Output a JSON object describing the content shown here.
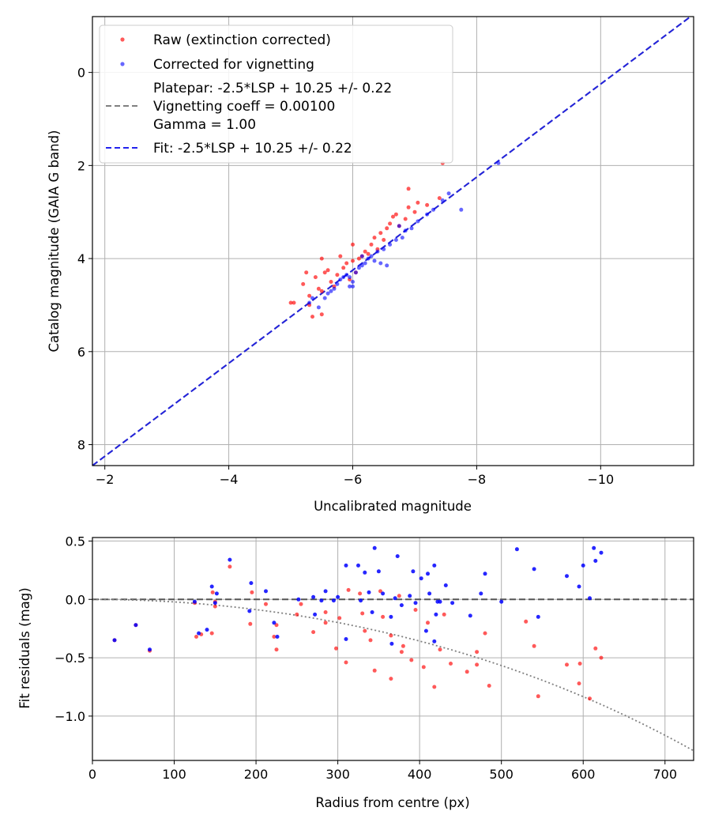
{
  "chart_data": [
    {
      "type": "scatter",
      "panel": "calibration",
      "title": "",
      "xlabel": "Uncalibrated magnitude",
      "ylabel": "Catalog magnitude (GAIA G band)",
      "xlim": [
        -1.8,
        -11.5
      ],
      "ylim": [
        8.45,
        -1.2
      ],
      "x_inverted": true,
      "y_inverted": true,
      "grid": true,
      "legend_location": "upper-left",
      "xticks": [
        -2,
        -4,
        -6,
        -8,
        -10
      ],
      "xtick_labels": [
        "−2",
        "−4",
        "−6",
        "−8",
        "−10"
      ],
      "yticks": [
        0,
        2,
        4,
        6,
        8
      ],
      "ytick_labels": [
        "0",
        "2",
        "4",
        "6",
        "8"
      ],
      "legend": [
        {
          "label": "Raw (extinction corrected)",
          "kind": "marker",
          "color": "#ff0000"
        },
        {
          "label": "Corrected for vignetting",
          "kind": "marker",
          "color": "#0000ff"
        },
        {
          "label": "Platepar: -2.5*LSP + 10.25 +/- 0.22",
          "label2": "Vignetting coeff = 0.00100",
          "label3": "Gamma = 1.00",
          "kind": "dashed-line",
          "color": "#808080"
        },
        {
          "label": "Fit: -2.5*LSP + 10.25 +/- 0.22",
          "kind": "dashed-line",
          "color": "#2222ee"
        }
      ],
      "lines": [
        {
          "name": "Platepar",
          "slope": 1.0,
          "intercept": 10.25,
          "color": "#808080"
        },
        {
          "name": "Fit",
          "slope": 1.0,
          "intercept": 10.25,
          "color": "#2222dd"
        }
      ],
      "series": [
        {
          "name": "Raw (extinction corrected)",
          "color": "#ff0000",
          "points": [
            [
              -5.0,
              4.95
            ],
            [
              -5.05,
              4.95
            ],
            [
              -5.2,
              4.55
            ],
            [
              -5.3,
              4.8
            ],
            [
              -5.3,
              5.0
            ],
            [
              -5.35,
              5.25
            ],
            [
              -5.4,
              4.4
            ],
            [
              -5.45,
              4.65
            ],
            [
              -5.5,
              5.2
            ],
            [
              -5.5,
              4.7
            ],
            [
              -5.55,
              4.3
            ],
            [
              -5.6,
              4.25
            ],
            [
              -5.65,
              4.5
            ],
            [
              -5.7,
              4.6
            ],
            [
              -5.75,
              4.35
            ],
            [
              -5.85,
              4.2
            ],
            [
              -5.9,
              4.1
            ],
            [
              -5.95,
              4.45
            ],
            [
              -6.0,
              4.05
            ],
            [
              -6.05,
              4.3
            ],
            [
              -6.1,
              4.0
            ],
            [
              -6.15,
              3.95
            ],
            [
              -6.2,
              3.85
            ],
            [
              -6.25,
              3.9
            ],
            [
              -6.3,
              3.7
            ],
            [
              -6.35,
              3.55
            ],
            [
              -6.4,
              3.8
            ],
            [
              -6.45,
              3.45
            ],
            [
              -6.55,
              3.35
            ],
            [
              -6.6,
              3.25
            ],
            [
              -6.65,
              3.1
            ],
            [
              -6.75,
              3.3
            ],
            [
              -6.85,
              3.15
            ],
            [
              -6.9,
              2.9
            ],
            [
              -7.0,
              3.0
            ],
            [
              -7.05,
              2.8
            ],
            [
              -6.9,
              2.5
            ],
            [
              -7.2,
              2.85
            ],
            [
              -7.4,
              2.7
            ],
            [
              -7.45,
              1.95
            ],
            [
              -5.5,
              4.0
            ],
            [
              -6.5,
              3.6
            ],
            [
              -5.8,
              3.95
            ],
            [
              -6.0,
              3.7
            ],
            [
              -5.25,
              4.3
            ],
            [
              -6.7,
              3.05
            ]
          ]
        },
        {
          "name": "Corrected for vignetting",
          "color": "#0000ff",
          "points": [
            [
              -5.3,
              4.95
            ],
            [
              -5.45,
              5.05
            ],
            [
              -5.55,
              4.85
            ],
            [
              -5.6,
              4.75
            ],
            [
              -5.7,
              4.65
            ],
            [
              -5.75,
              4.55
            ],
            [
              -5.8,
              4.45
            ],
            [
              -5.85,
              4.4
            ],
            [
              -5.9,
              4.35
            ],
            [
              -5.95,
              4.4
            ],
            [
              -6.0,
              4.5
            ],
            [
              -6.05,
              4.3
            ],
            [
              -6.1,
              4.2
            ],
            [
              -6.15,
              4.15
            ],
            [
              -6.2,
              4.1
            ],
            [
              -6.25,
              4.0
            ],
            [
              -6.3,
              3.95
            ],
            [
              -6.35,
              4.05
            ],
            [
              -6.4,
              3.85
            ],
            [
              -6.45,
              4.1
            ],
            [
              -6.5,
              3.8
            ],
            [
              -6.6,
              3.7
            ],
            [
              -6.7,
              3.6
            ],
            [
              -6.8,
              3.55
            ],
            [
              -6.85,
              3.4
            ],
            [
              -6.95,
              3.35
            ],
            [
              -7.05,
              3.2
            ],
            [
              -7.2,
              3.05
            ],
            [
              -7.3,
              2.95
            ],
            [
              -7.45,
              2.75
            ],
            [
              -7.55,
              2.6
            ],
            [
              -7.75,
              2.95
            ],
            [
              -8.35,
              1.95
            ],
            [
              -6.0,
              4.6
            ],
            [
              -5.65,
              4.7
            ],
            [
              -6.55,
              4.15
            ],
            [
              -6.15,
              3.95
            ],
            [
              -5.35,
              4.85
            ],
            [
              -5.95,
              4.6
            ],
            [
              -6.75,
              3.3
            ]
          ]
        }
      ]
    },
    {
      "type": "scatter",
      "panel": "residuals",
      "title": "",
      "xlabel": "Radius from centre (px)",
      "ylabel": "Fit residuals (mag)",
      "xlim": [
        0,
        735
      ],
      "ylim": [
        -1.38,
        0.53
      ],
      "grid": true,
      "xticks": [
        0,
        100,
        200,
        300,
        400,
        500,
        600,
        700
      ],
      "xtick_labels": [
        "0",
        "100",
        "200",
        "300",
        "400",
        "500",
        "600",
        "700"
      ],
      "yticks": [
        0.5,
        0.0,
        -0.5,
        -1.0
      ],
      "ytick_labels": [
        "0.5",
        "0.0",
        "−0.5",
        "−1.0"
      ],
      "reference_line": {
        "y": 0.0,
        "color": "#555555"
      },
      "vignetting_curve": {
        "coeff": 0.001,
        "gamma": 1.0,
        "color": "#808080"
      },
      "series": [
        {
          "name": "Raw (extinction corrected)",
          "color": "#ff0000",
          "points": [
            [
              27,
              -0.35
            ],
            [
              53,
              -0.22
            ],
            [
              70,
              -0.44
            ],
            [
              127,
              -0.32
            ],
            [
              133,
              -0.3
            ],
            [
              146,
              -0.29
            ],
            [
              147,
              0.06
            ],
            [
              150,
              -0.06
            ],
            [
              168,
              0.28
            ],
            [
              193,
              -0.21
            ],
            [
              195,
              0.06
            ],
            [
              212,
              -0.04
            ],
            [
              222,
              -0.32
            ],
            [
              225,
              -0.43
            ],
            [
              250,
              -0.13
            ],
            [
              270,
              -0.28
            ],
            [
              285,
              -0.2
            ],
            [
              298,
              -0.42
            ],
            [
              310,
              -0.54
            ],
            [
              313,
              0.08
            ],
            [
              327,
              0.05
            ],
            [
              340,
              -0.35
            ],
            [
              345,
              -0.61
            ],
            [
              352,
              0.07
            ],
            [
              365,
              -0.68
            ],
            [
              378,
              -0.45
            ],
            [
              380,
              -0.4
            ],
            [
              395,
              -0.09
            ],
            [
              405,
              -0.58
            ],
            [
              418,
              -0.75
            ],
            [
              425,
              -0.43
            ],
            [
              438,
              -0.55
            ],
            [
              458,
              -0.62
            ],
            [
              470,
              -0.45
            ],
            [
              480,
              -0.29
            ],
            [
              485,
              -0.74
            ],
            [
              530,
              -0.19
            ],
            [
              540,
              -0.4
            ],
            [
              545,
              -0.83
            ],
            [
              580,
              -0.56
            ],
            [
              595,
              -0.72
            ],
            [
              608,
              -0.85
            ],
            [
              615,
              -0.42
            ],
            [
              622,
              -0.5
            ],
            [
              255,
              -0.04
            ],
            [
              302,
              -0.16
            ],
            [
              225,
              -0.22
            ],
            [
              330,
              -0.12
            ],
            [
              365,
              -0.31
            ],
            [
              410,
              -0.2
            ],
            [
              390,
              -0.52
            ],
            [
              355,
              -0.15
            ],
            [
              285,
              -0.11
            ],
            [
              333,
              -0.27
            ],
            [
              470,
              -0.56
            ],
            [
              596,
              -0.55
            ],
            [
              150,
              -0.02
            ],
            [
              125,
              -0.03
            ],
            [
              375,
              0.03
            ],
            [
              430,
              -0.13
            ]
          ]
        },
        {
          "name": "Corrected for vignetting",
          "color": "#0000ff",
          "points": [
            [
              27,
              -0.35
            ],
            [
              53,
              -0.22
            ],
            [
              70,
              -0.43
            ],
            [
              125,
              -0.02
            ],
            [
              130,
              -0.29
            ],
            [
              140,
              -0.26
            ],
            [
              146,
              0.11
            ],
            [
              150,
              -0.03
            ],
            [
              152,
              0.05
            ],
            [
              168,
              0.34
            ],
            [
              192,
              -0.1
            ],
            [
              194,
              0.14
            ],
            [
              212,
              0.07
            ],
            [
              222,
              -0.2
            ],
            [
              226,
              -0.32
            ],
            [
              252,
              0.0
            ],
            [
              270,
              0.02
            ],
            [
              272,
              -0.13
            ],
            [
              285,
              0.07
            ],
            [
              295,
              -0.01
            ],
            [
              300,
              0.02
            ],
            [
              310,
              0.29
            ],
            [
              325,
              0.29
            ],
            [
              328,
              -0.01
            ],
            [
              338,
              0.06
            ],
            [
              342,
              -0.11
            ],
            [
              345,
              0.44
            ],
            [
              350,
              0.24
            ],
            [
              355,
              0.05
            ],
            [
              370,
              0.01
            ],
            [
              373,
              0.37
            ],
            [
              378,
              -0.05
            ],
            [
              388,
              0.03
            ],
            [
              392,
              0.24
            ],
            [
              402,
              0.18
            ],
            [
              410,
              0.22
            ],
            [
              412,
              0.05
            ],
            [
              418,
              0.29
            ],
            [
              422,
              -0.02
            ],
            [
              425,
              -0.02
            ],
            [
              432,
              0.12
            ],
            [
              440,
              -0.03
            ],
            [
              462,
              -0.14
            ],
            [
              475,
              0.05
            ],
            [
              480,
              0.22
            ],
            [
              500,
              -0.02
            ],
            [
              519,
              0.43
            ],
            [
              540,
              0.26
            ],
            [
              545,
              -0.15
            ],
            [
              580,
              0.2
            ],
            [
              595,
              0.11
            ],
            [
              600,
              0.29
            ],
            [
              608,
              0.01
            ],
            [
              613,
              0.44
            ],
            [
              615,
              0.33
            ],
            [
              622,
              0.4
            ],
            [
              366,
              -0.38
            ],
            [
              418,
              -0.36
            ],
            [
              333,
              0.23
            ],
            [
              408,
              -0.27
            ],
            [
              280,
              -0.01
            ],
            [
              365,
              -0.15
            ],
            [
              395,
              -0.03
            ],
            [
              310,
              -0.34
            ],
            [
              420,
              -0.13
            ]
          ]
        }
      ]
    }
  ]
}
